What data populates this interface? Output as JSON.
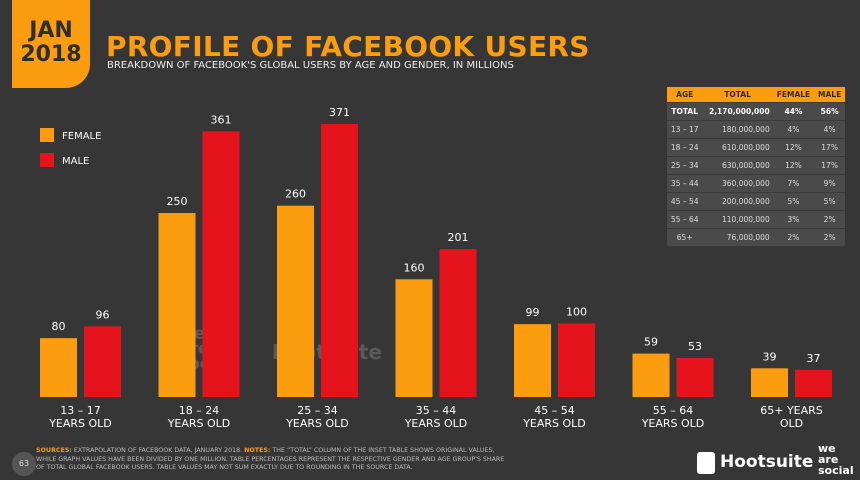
{
  "badge": {
    "month": "JAN",
    "year": "2018"
  },
  "chart_data": {
    "type": "bar",
    "title": "PROFILE OF FACEBOOK USERS",
    "subtitle": "BREAKDOWN OF FACEBOOK'S GLOBAL USERS BY AGE AND GENDER, IN MILLIONS",
    "categories": [
      "13 – 17 YEARS OLD",
      "18 – 24 YEARS OLD",
      "25 – 34 YEARS OLD",
      "35 – 44 YEARS OLD",
      "45 – 54 YEARS OLD",
      "55 – 64 YEARS OLD",
      "65+ YEARS OLD"
    ],
    "series": [
      {
        "name": "FEMALE",
        "color": "#fb9d0f",
        "values": [
          80,
          250,
          260,
          160,
          99,
          59,
          39
        ]
      },
      {
        "name": "MALE",
        "color": "#e5141c",
        "values": [
          96,
          361,
          371,
          201,
          100,
          53,
          37
        ]
      }
    ],
    "legend": "upper left"
  },
  "table": {
    "header": [
      "AGE",
      "TOTAL",
      "FEMALE",
      "MALE"
    ],
    "rows": [
      [
        "TOTAL",
        "2,170,000,000",
        "44%",
        "56%"
      ],
      [
        "13 – 17",
        "180,000,000",
        "4%",
        "4%"
      ],
      [
        "18 – 24",
        "610,000,000",
        "12%",
        "17%"
      ],
      [
        "25 – 34",
        "630,000,000",
        "12%",
        "17%"
      ],
      [
        "35 – 44",
        "360,000,000",
        "7%",
        "9%"
      ],
      [
        "45 – 54",
        "200,000,000",
        "5%",
        "5%"
      ],
      [
        "55 – 64",
        "110,000,000",
        "3%",
        "2%"
      ],
      [
        "65+",
        "76,000,000",
        "2%",
        "2%"
      ]
    ]
  },
  "footer": {
    "sources_label": "SOURCES:",
    "sources": "EXTRAPOLATION OF FACEBOOK DATA, JANUARY 2018.",
    "notes_label": "NOTES:",
    "notes": "THE “TOTAL” COLUMN OF THE INSET TABLE SHOWS ORIGINAL VALUES, WHILE GRAPH VALUES HAVE BEEN DIVIDED BY ONE MILLION. TABLE PERCENTAGES REPRESENT THE RESPECTIVE GENDER AND AGE GROUP'S SHARE OF TOTAL GLOBAL FACEBOOK USERS. TABLE VALUES MAY NOT SUM EXACTLY DUE TO ROUNDING IN THE SOURCE DATA."
  },
  "page_number": "63",
  "brands": {
    "hootsuite": "Hootsuite",
    "wearesocial": "we are social"
  }
}
